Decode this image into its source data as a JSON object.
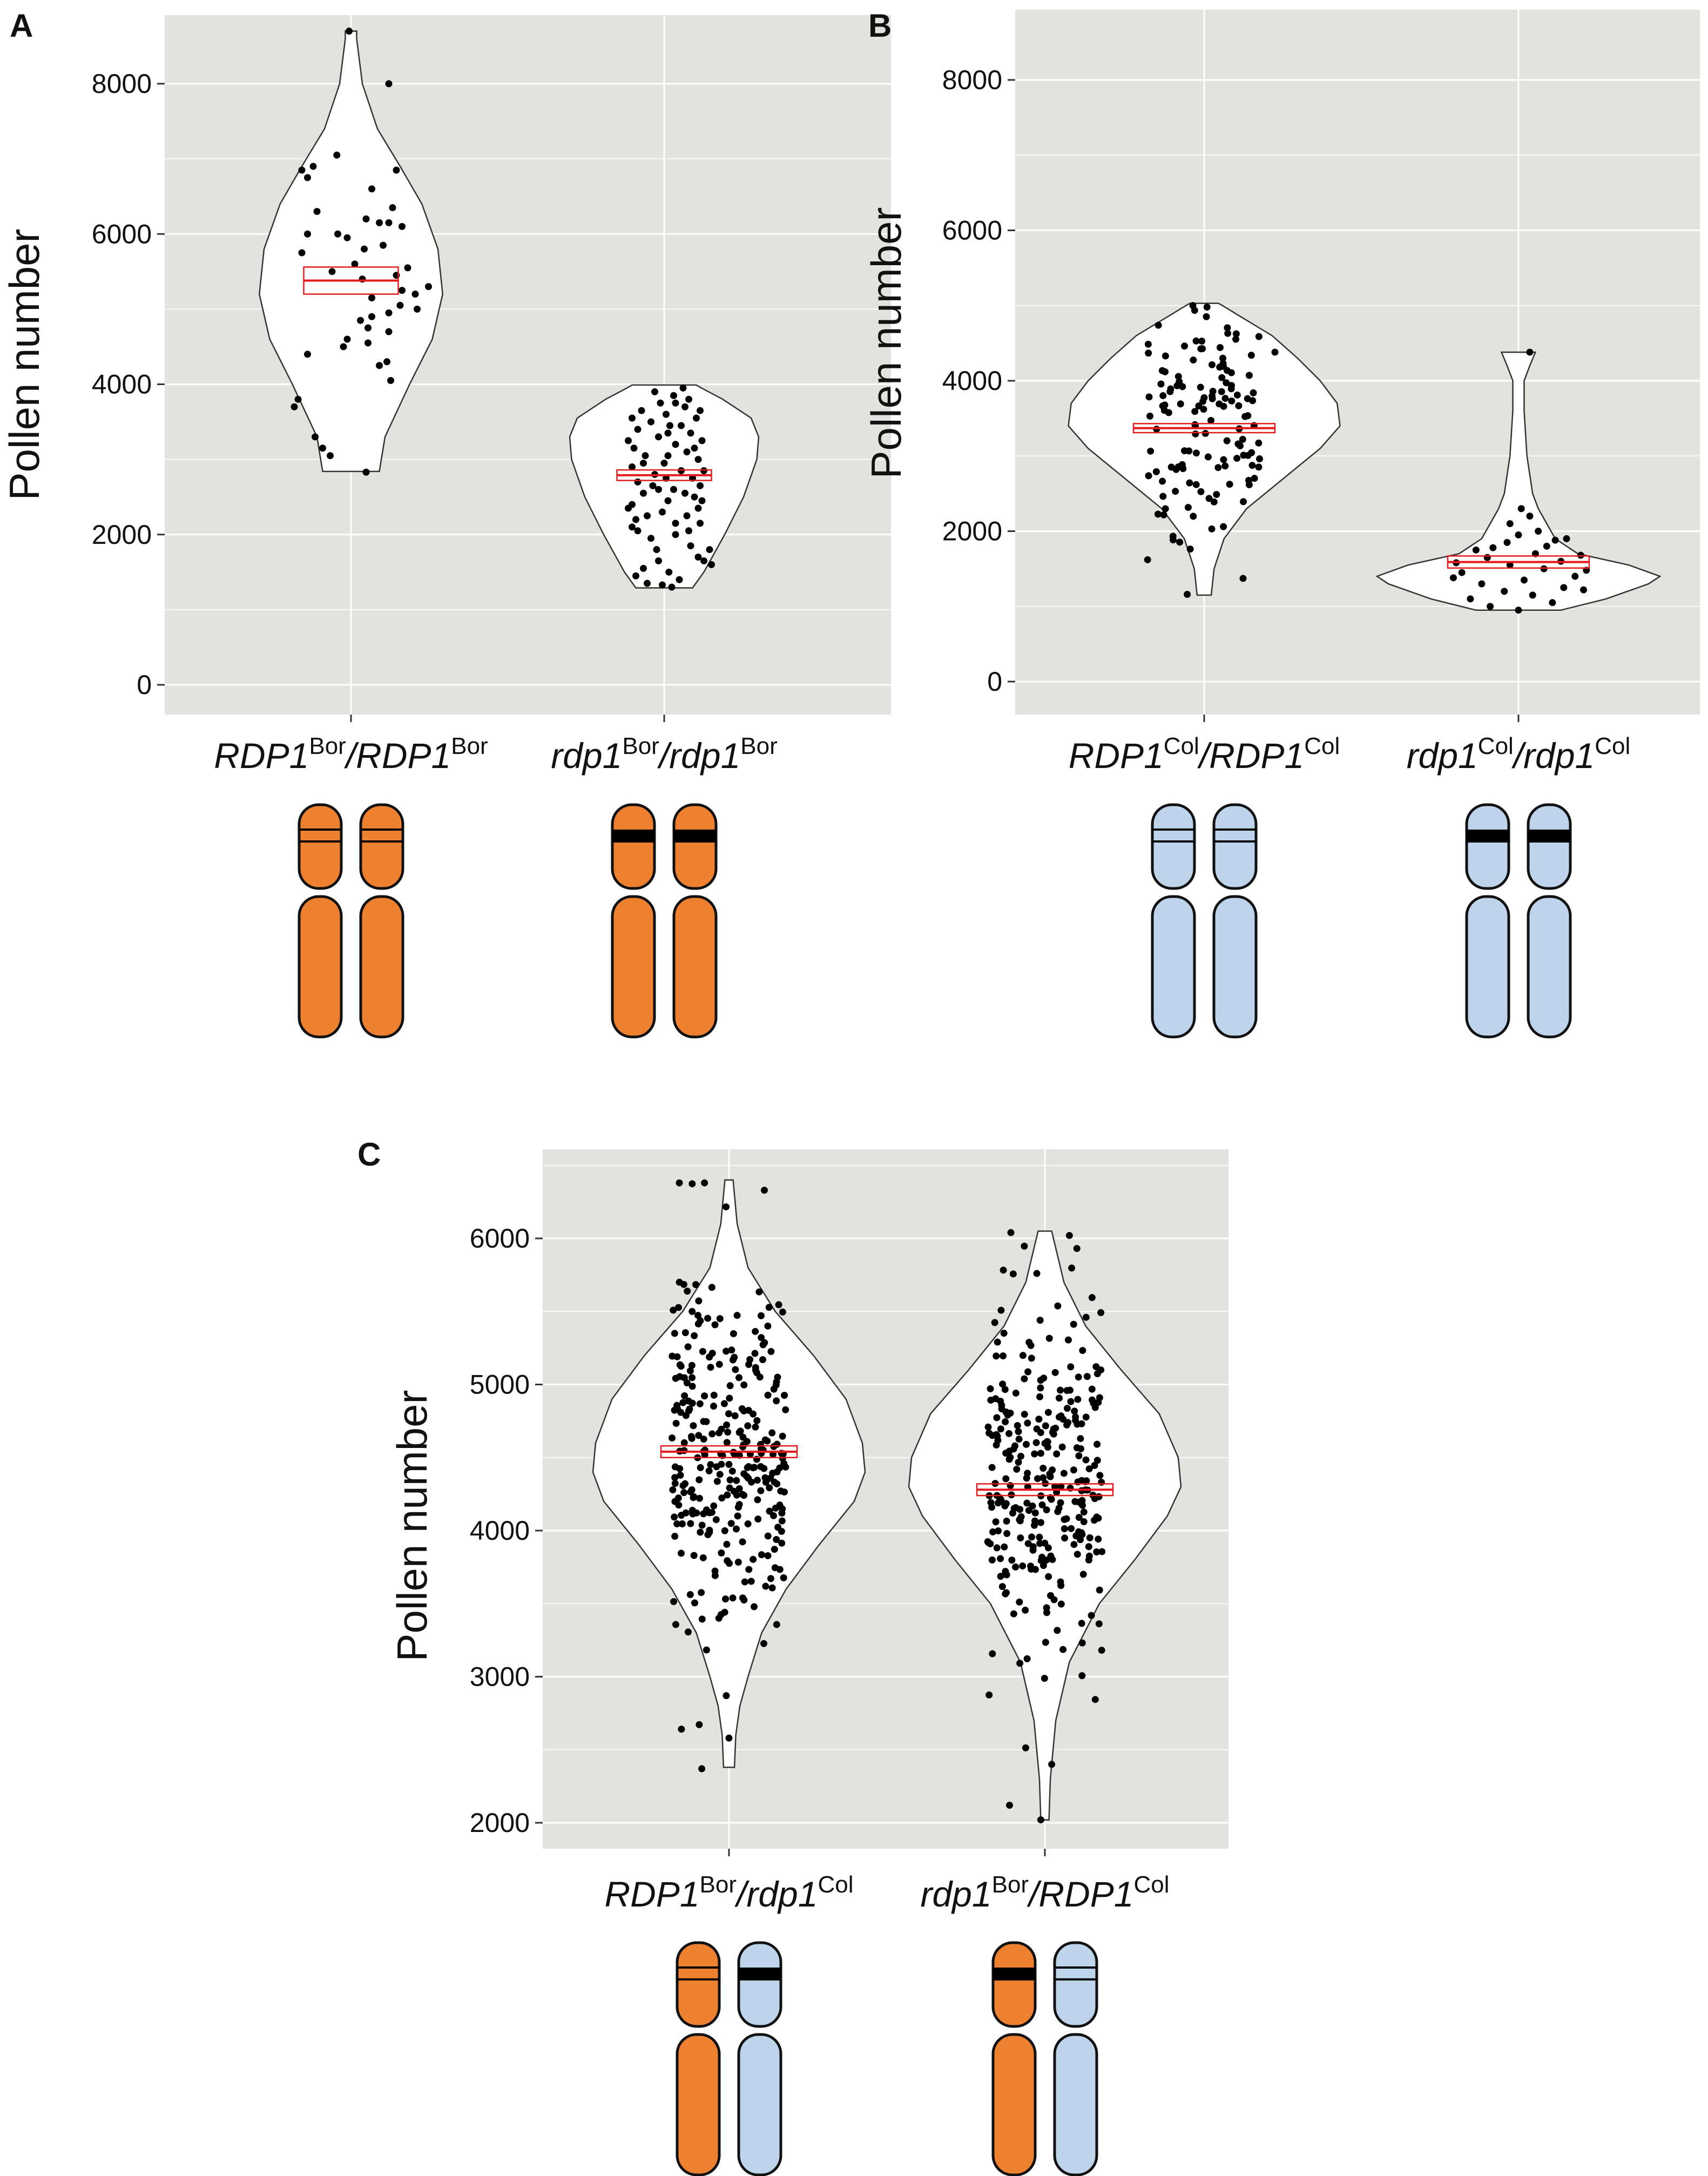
{
  "colors": {
    "panel_background": "#e2e3df",
    "gridline": "#ffffff",
    "violin_fill": "#ffffff",
    "violin_stroke": "#333333",
    "point": "#000000",
    "mean_box": "#e41a1c",
    "bor_allele": "#ee8130",
    "col_allele": "#bdd4ea",
    "chromosome_outline": "#111111"
  },
  "chart_data": [
    {
      "panel": "A",
      "type": "violin",
      "ylabel": "Pollen number",
      "ylim": [
        -400,
        8900
      ],
      "yticks": [
        0,
        2000,
        4000,
        6000,
        8000
      ],
      "grid": true,
      "groups": [
        {
          "label": {
            "g1": "RDP1",
            "s1": "Bor",
            "g2": "RDP1",
            "s2": "Bor"
          },
          "alleles": [
            "bor",
            "bor"
          ],
          "mutant": [
            false,
            false
          ],
          "violin_profile": [
            [
              2840,
              0.3
            ],
            [
              3300,
              0.36
            ],
            [
              4000,
              0.62
            ],
            [
              4600,
              0.86
            ],
            [
              5200,
              0.97
            ],
            [
              5800,
              0.92
            ],
            [
              6400,
              0.75
            ],
            [
              6900,
              0.52
            ],
            [
              7400,
              0.28
            ],
            [
              8000,
              0.12
            ],
            [
              8600,
              0.06
            ],
            [
              8700,
              0.06
            ]
          ],
          "mean": 5380,
          "ci": [
            5200,
            5560
          ],
          "points": [
            [
              2830,
              0.16
            ],
            [
              3050,
              -0.22
            ],
            [
              3150,
              -0.3
            ],
            [
              3300,
              -0.38
            ],
            [
              3700,
              -0.6
            ],
            [
              3800,
              -0.56
            ],
            [
              4050,
              0.42
            ],
            [
              4250,
              0.3
            ],
            [
              4300,
              0.38
            ],
            [
              4400,
              -0.46
            ],
            [
              4500,
              -0.08
            ],
            [
              4550,
              0.18
            ],
            [
              4600,
              -0.04
            ],
            [
              4700,
              0.4
            ],
            [
              4750,
              0.18
            ],
            [
              4850,
              0.1
            ],
            [
              4900,
              0.22
            ],
            [
              4950,
              0.4
            ],
            [
              5000,
              0.7
            ],
            [
              5050,
              0.52
            ],
            [
              5150,
              0.22
            ],
            [
              5200,
              0.68
            ],
            [
              5250,
              0.54
            ],
            [
              5300,
              0.82
            ],
            [
              5400,
              0.12
            ],
            [
              5450,
              0.48
            ],
            [
              5500,
              -0.2
            ],
            [
              5550,
              0.6
            ],
            [
              5600,
              0.04
            ],
            [
              5750,
              -0.52
            ],
            [
              5800,
              0.14
            ],
            [
              5850,
              0.34
            ],
            [
              5950,
              -0.04
            ],
            [
              6000,
              -0.14
            ],
            [
              6000,
              -0.46
            ],
            [
              6100,
              0.54
            ],
            [
              6150,
              0.3
            ],
            [
              6150,
              0.4
            ],
            [
              6200,
              0.16
            ],
            [
              6300,
              -0.36
            ],
            [
              6350,
              0.44
            ],
            [
              6600,
              0.22
            ],
            [
              6750,
              -0.46
            ],
            [
              6850,
              0.48
            ],
            [
              6850,
              -0.52
            ],
            [
              6900,
              -0.4
            ],
            [
              7050,
              -0.15
            ],
            [
              8000,
              0.4
            ],
            [
              8700,
              -0.02
            ]
          ]
        },
        {
          "label": {
            "g1": "rdp1",
            "s1": "Bor",
            "g2": "rdp1",
            "s2": "Bor"
          },
          "alleles": [
            "bor",
            "bor"
          ],
          "mutant": [
            true,
            true
          ],
          "violin_profile": [
            [
              1290,
              0.3
            ],
            [
              1500,
              0.42
            ],
            [
              2000,
              0.64
            ],
            [
              2500,
              0.84
            ],
            [
              3000,
              0.98
            ],
            [
              3300,
              1.0
            ],
            [
              3550,
              0.92
            ],
            [
              3800,
              0.62
            ],
            [
              3960,
              0.38
            ],
            [
              3990,
              0.34
            ]
          ],
          "mean": 2790,
          "ci": [
            2720,
            2860
          ],
          "points": [
            [
              1300,
              0.08
            ],
            [
              1330,
              -0.02
            ],
            [
              1350,
              -0.18
            ],
            [
              1400,
              0.16
            ],
            [
              1450,
              -0.3
            ],
            [
              1500,
              0.05
            ],
            [
              1550,
              -0.22
            ],
            [
              1600,
              0.5
            ],
            [
              1650,
              0.42
            ],
            [
              1700,
              0.36
            ],
            [
              1800,
              -0.08
            ],
            [
              1850,
              0.28
            ],
            [
              1950,
              -0.14
            ],
            [
              2000,
              0.12
            ],
            [
              2050,
              -0.28
            ],
            [
              2100,
              -0.34
            ],
            [
              2150,
              0.12
            ],
            [
              2200,
              -0.3
            ],
            [
              2250,
              0.24
            ],
            [
              2300,
              -0.02
            ],
            [
              2350,
              0.36
            ],
            [
              2400,
              -0.34
            ],
            [
              2450,
              0.04
            ],
            [
              2500,
              0.32
            ],
            [
              2550,
              -0.22
            ],
            [
              2600,
              0.1
            ],
            [
              2650,
              0.38
            ],
            [
              2700,
              -0.28
            ],
            [
              2750,
              0.3
            ],
            [
              2800,
              -0.1
            ],
            [
              2850,
              0.18
            ],
            [
              2900,
              -0.34
            ],
            [
              2950,
              0.0
            ],
            [
              3000,
              0.36
            ],
            [
              3050,
              -0.2
            ],
            [
              3100,
              0.24
            ],
            [
              3150,
              -0.32
            ],
            [
              3200,
              0.12
            ],
            [
              3250,
              0.4
            ],
            [
              3300,
              -0.06
            ],
            [
              3350,
              0.28
            ],
            [
              3400,
              -0.28
            ],
            [
              3450,
              0.18
            ],
            [
              3500,
              -0.14
            ],
            [
              3550,
              0.34
            ],
            [
              3600,
              0.02
            ],
            [
              3650,
              -0.24
            ],
            [
              3700,
              0.22
            ],
            [
              3750,
              -0.04
            ],
            [
              3800,
              0.26
            ],
            [
              3850,
              0.1
            ],
            [
              3900,
              -0.1
            ],
            [
              3950,
              0.2
            ],
            [
              2050,
              0.26
            ],
            [
              2250,
              -0.18
            ],
            [
              2450,
              0.4
            ],
            [
              2650,
              -0.12
            ],
            [
              2850,
              0.42
            ],
            [
              3050,
              0.04
            ],
            [
              3250,
              -0.38
            ],
            [
              3450,
              0.06
            ],
            [
              3650,
              0.38
            ],
            [
              2150,
              0.38
            ],
            [
              2350,
              -0.38
            ],
            [
              2550,
              0.22
            ],
            [
              2750,
              0.02
            ],
            [
              2950,
              -0.22
            ],
            [
              3150,
              0.32
            ],
            [
              3350,
              0.04
            ],
            [
              3550,
              -0.34
            ],
            [
              3750,
              0.12
            ],
            [
              1800,
              0.48
            ],
            [
              1650,
              -0.06
            ],
            [
              2600,
              -0.06
            ]
          ]
        }
      ]
    },
    {
      "panel": "B",
      "type": "violin",
      "ylabel": "Pollen number",
      "ylim": [
        -400,
        8900
      ],
      "yticks": [
        0,
        2000,
        4000,
        6000,
        8000
      ],
      "grid": true,
      "groups": [
        {
          "label": {
            "g1": "RDP1",
            "s1": "Col",
            "g2": "RDP1",
            "s2": "Col"
          },
          "alleles": [
            "col",
            "col"
          ],
          "mutant": [
            false,
            false
          ],
          "violin_profile": [
            [
              1150,
              0.05
            ],
            [
              1500,
              0.07
            ],
            [
              1900,
              0.14
            ],
            [
              2300,
              0.3
            ],
            [
              2700,
              0.56
            ],
            [
              3100,
              0.82
            ],
            [
              3400,
              0.96
            ],
            [
              3700,
              0.94
            ],
            [
              4000,
              0.82
            ],
            [
              4300,
              0.66
            ],
            [
              4600,
              0.48
            ],
            [
              4850,
              0.26
            ],
            [
              5010,
              0.12
            ],
            [
              5030,
              0.1
            ]
          ],
          "mean": 3370,
          "ci": [
            3310,
            3430
          ]
        },
        {
          "label": {
            "g1": "rdp1",
            "s1": "Col",
            "g2": "rdp1",
            "s2": "Col"
          },
          "alleles": [
            "col",
            "col"
          ],
          "mutant": [
            true,
            true
          ],
          "violin_profile": [
            [
              950,
              0.3
            ],
            [
              1100,
              0.62
            ],
            [
              1300,
              0.92
            ],
            [
              1400,
              1.0
            ],
            [
              1550,
              0.78
            ],
            [
              1700,
              0.42
            ],
            [
              1900,
              0.26
            ],
            [
              2100,
              0.2
            ],
            [
              2300,
              0.14
            ],
            [
              2500,
              0.1
            ],
            [
              3000,
              0.06
            ],
            [
              3600,
              0.04
            ],
            [
              4000,
              0.04
            ],
            [
              4200,
              0.08
            ],
            [
              4380,
              0.12
            ]
          ],
          "mean": 1590,
          "ci": [
            1510,
            1670
          ],
          "points": [
            [
              950,
              0.0
            ],
            [
              1000,
              -0.2
            ],
            [
              1050,
              0.24
            ],
            [
              1100,
              -0.34
            ],
            [
              1150,
              0.1
            ],
            [
              1200,
              -0.1
            ],
            [
              1250,
              0.32
            ],
            [
              1300,
              -0.26
            ],
            [
              1350,
              0.04
            ],
            [
              1400,
              0.4
            ],
            [
              1450,
              -0.4
            ],
            [
              1500,
              0.18
            ],
            [
              1550,
              -0.06
            ],
            [
              1600,
              0.3
            ],
            [
              1650,
              -0.22
            ],
            [
              1700,
              0.12
            ],
            [
              1750,
              -0.3
            ],
            [
              1800,
              0.2
            ],
            [
              1850,
              -0.08
            ],
            [
              1900,
              0.34
            ],
            [
              1950,
              0.0
            ],
            [
              2000,
              0.14
            ],
            [
              2100,
              -0.06
            ],
            [
              2200,
              0.08
            ],
            [
              2300,
              0.02
            ],
            [
              1220,
              0.46
            ],
            [
              1380,
              -0.46
            ],
            [
              1480,
              0.48
            ],
            [
              1580,
              -0.44
            ],
            [
              1680,
              0.44
            ],
            [
              1780,
              -0.18
            ],
            [
              1880,
              0.26
            ],
            [
              4380,
              0.08
            ]
          ]
        }
      ]
    },
    {
      "panel": "C",
      "type": "violin",
      "ylabel": "Pollen number",
      "ylim": [
        1850,
        6600
      ],
      "yticks": [
        2000,
        3000,
        4000,
        5000,
        6000
      ],
      "grid": true,
      "groups": [
        {
          "label": {
            "g1": "RDP1",
            "s1": "Bor",
            "g2": "rdp1",
            "s2": "Col"
          },
          "alleles": [
            "bor",
            "col"
          ],
          "mutant": [
            false,
            true
          ],
          "violin_profile": [
            [
              2380,
              0.04
            ],
            [
              2600,
              0.05
            ],
            [
              2800,
              0.08
            ],
            [
              3000,
              0.14
            ],
            [
              3300,
              0.24
            ],
            [
              3600,
              0.42
            ],
            [
              3900,
              0.66
            ],
            [
              4200,
              0.92
            ],
            [
              4400,
              1.0
            ],
            [
              4600,
              0.98
            ],
            [
              4900,
              0.86
            ],
            [
              5200,
              0.62
            ],
            [
              5500,
              0.34
            ],
            [
              5800,
              0.14
            ],
            [
              6100,
              0.06
            ],
            [
              6400,
              0.03
            ]
          ],
          "mean": 4540,
          "ci": [
            4500,
            4580
          ]
        },
        {
          "label": {
            "g1": "rdp1",
            "s1": "Bor",
            "g2": "RDP1",
            "s2": "Col"
          },
          "alleles": [
            "bor",
            "col"
          ],
          "mutant": [
            true,
            false
          ],
          "violin_profile": [
            [
              2020,
              0.03
            ],
            [
              2300,
              0.04
            ],
            [
              2700,
              0.08
            ],
            [
              3100,
              0.18
            ],
            [
              3500,
              0.4
            ],
            [
              3800,
              0.66
            ],
            [
              4100,
              0.9
            ],
            [
              4300,
              1.0
            ],
            [
              4500,
              0.98
            ],
            [
              4800,
              0.84
            ],
            [
              5100,
              0.56
            ],
            [
              5400,
              0.3
            ],
            [
              5700,
              0.14
            ],
            [
              6050,
              0.05
            ]
          ],
          "mean": 4280,
          "ci": [
            4240,
            4320
          ]
        }
      ]
    }
  ]
}
